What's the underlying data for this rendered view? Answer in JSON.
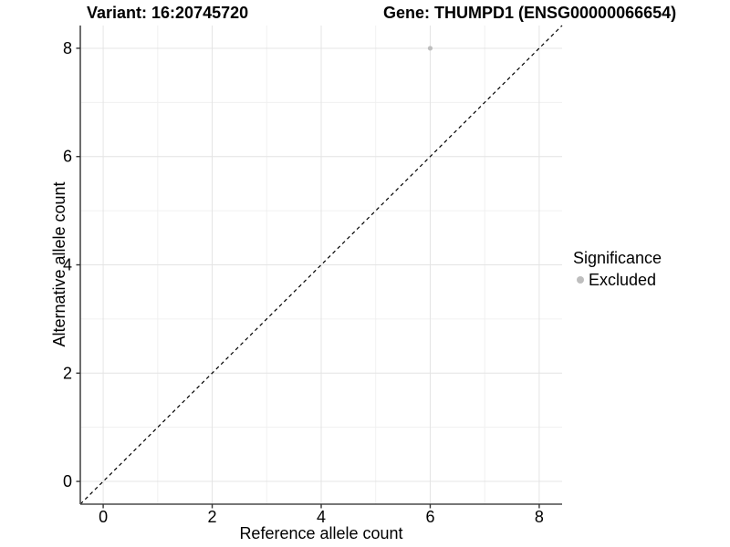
{
  "titles": {
    "left": "Variant: 16:20745720",
    "right": "Gene: THUMPD1 (ENSG00000066654)"
  },
  "chart_data": {
    "type": "scatter",
    "title_left": "Variant: 16:20745720",
    "title_right": "Gene: THUMPD1 (ENSG00000066654)",
    "xlabel": "Reference allele count",
    "ylabel": "Alternative allele count",
    "xlim": [
      -0.42,
      8.42
    ],
    "ylim": [
      -0.42,
      8.42
    ],
    "xticks": [
      0,
      2,
      4,
      6,
      8
    ],
    "yticks": [
      0,
      2,
      4,
      6,
      8
    ],
    "minor_xticks": [
      1,
      3,
      5,
      7
    ],
    "minor_yticks": [
      1,
      3,
      5,
      7
    ],
    "grid": true,
    "points": [
      {
        "x": 6,
        "y": 8,
        "series": "Excluded"
      }
    ],
    "abline": {
      "slope": 1,
      "intercept": 0,
      "style": "dashed",
      "color": "#000000"
    },
    "legend": {
      "position": "right",
      "title": "Significance",
      "entries": [
        {
          "label": "Excluded",
          "color": "#bebebe"
        }
      ]
    }
  },
  "colors": {
    "background": "#ffffff",
    "axis_line": "#4a4a4a",
    "tick_mark": "#333333",
    "major_grid": "#e4e4e4",
    "minor_grid": "#f0f0f0",
    "point": "#bebebe",
    "text": "#000000"
  }
}
